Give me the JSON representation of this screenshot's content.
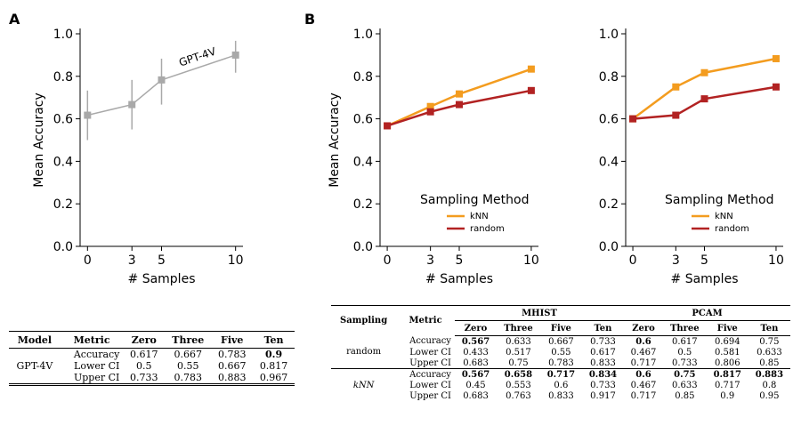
{
  "panels": {
    "a": "A",
    "b": "B"
  },
  "chart_data": [
    {
      "type": "line",
      "panel": "A",
      "xlabel": "# Samples",
      "ylabel": "Mean Accuracy",
      "xticks": [
        0,
        3,
        5,
        10
      ],
      "yticks": [
        "0.0",
        "0.2",
        "0.4",
        "0.6",
        "0.8",
        "1.0"
      ],
      "xlim": [
        -0.5,
        10.5
      ],
      "ylim": [
        0,
        1.0
      ],
      "annotation": "GPT-4V",
      "color": "#a9a9a9",
      "series": [
        {
          "name": "GPT-4V",
          "x": [
            0,
            3,
            5,
            10
          ],
          "y": [
            0.617,
            0.667,
            0.783,
            0.9
          ],
          "lower": [
            0.5,
            0.55,
            0.667,
            0.817
          ],
          "upper": [
            0.733,
            0.783,
            0.883,
            0.967
          ]
        }
      ]
    },
    {
      "type": "line",
      "panel": "B-left",
      "xlabel": "# Samples",
      "ylabel": "Mean Accuracy",
      "xticks": [
        0,
        3,
        5,
        10
      ],
      "yticks": [
        "0.0",
        "0.2",
        "0.4",
        "0.6",
        "0.8",
        "1.0"
      ],
      "xlim": [
        -0.5,
        10.5
      ],
      "ylim": [
        0,
        1.0
      ],
      "legend": {
        "title": "Sampling Method",
        "placement": "lower-right"
      },
      "series": [
        {
          "name": "kNN",
          "color": "#f39c1f",
          "x": [
            0,
            3,
            5,
            10
          ],
          "y": [
            0.567,
            0.658,
            0.717,
            0.834
          ]
        },
        {
          "name": "random",
          "color": "#b22222",
          "x": [
            0,
            3,
            5,
            10
          ],
          "y": [
            0.567,
            0.633,
            0.667,
            0.733
          ]
        }
      ]
    },
    {
      "type": "line",
      "panel": "B-right",
      "xlabel": "# Samples",
      "ylabel": "",
      "xticks": [
        0,
        3,
        5,
        10
      ],
      "yticks": [
        "0.0",
        "0.2",
        "0.4",
        "0.6",
        "0.8",
        "1.0"
      ],
      "xlim": [
        -0.5,
        10.5
      ],
      "ylim": [
        0,
        1.0
      ],
      "legend": {
        "title": "Sampling Method",
        "placement": "lower-right"
      },
      "series": [
        {
          "name": "kNN",
          "color": "#f39c1f",
          "x": [
            0,
            3,
            5,
            10
          ],
          "y": [
            0.6,
            0.75,
            0.817,
            0.883
          ]
        },
        {
          "name": "random",
          "color": "#b22222",
          "x": [
            0,
            3,
            5,
            10
          ],
          "y": [
            0.6,
            0.617,
            0.694,
            0.75
          ]
        }
      ]
    }
  ],
  "tableA": {
    "headers": [
      "Model",
      "Metric",
      "Zero",
      "Three",
      "Five",
      "Ten"
    ],
    "model": "GPT-4V",
    "rows": [
      {
        "metric": "Accuracy",
        "values": [
          "0.617",
          "0.667",
          "0.783",
          "0.9"
        ]
      },
      {
        "metric": "Lower CI",
        "values": [
          "0.5",
          "0.55",
          "0.667",
          "0.817"
        ]
      },
      {
        "metric": "Upper CI",
        "values": [
          "0.733",
          "0.783",
          "0.883",
          "0.967"
        ]
      }
    ]
  },
  "tableB": {
    "headers": {
      "sampling": "Sampling",
      "metric": "Metric",
      "group1": "MHIST",
      "group2": "PCAM"
    },
    "subheaders": [
      "Zero",
      "Three",
      "Five",
      "Ten",
      "Zero",
      "Three",
      "Five",
      "Ten"
    ],
    "groups": [
      {
        "name": "random",
        "rows": [
          {
            "metric": "Accuracy",
            "values": [
              "0.567",
              "0.633",
              "0.667",
              "0.733",
              "0.6",
              "0.617",
              "0.694",
              "0.75"
            ],
            "bold": [
              true,
              false,
              false,
              false,
              true,
              false,
              false,
              false
            ]
          },
          {
            "metric": "Lower CI",
            "values": [
              "0.433",
              "0.517",
              "0.55",
              "0.617",
              "0.467",
              "0.5",
              "0.581",
              "0.633"
            ],
            "bold": [
              false,
              false,
              false,
              false,
              false,
              false,
              false,
              false
            ]
          },
          {
            "metric": "Upper CI",
            "values": [
              "0.683",
              "0.75",
              "0.783",
              "0.833",
              "0.717",
              "0.733",
              "0.806",
              "0.85"
            ],
            "bold": [
              false,
              false,
              false,
              false,
              false,
              false,
              false,
              false
            ]
          }
        ]
      },
      {
        "name": "kNN",
        "rows": [
          {
            "metric": "Accuracy",
            "values": [
              "0.567",
              "0.658",
              "0.717",
              "0.834",
              "0.6",
              "0.75",
              "0.817",
              "0.883"
            ],
            "bold": [
              true,
              true,
              true,
              true,
              true,
              true,
              true,
              true
            ]
          },
          {
            "metric": "Lower CI",
            "values": [
              "0.45",
              "0.553",
              "0.6",
              "0.733",
              "0.467",
              "0.633",
              "0.717",
              "0.8"
            ],
            "bold": [
              false,
              false,
              false,
              false,
              false,
              false,
              false,
              false
            ]
          },
          {
            "metric": "Upper CI",
            "values": [
              "0.683",
              "0.763",
              "0.833",
              "0.917",
              "0.717",
              "0.85",
              "0.9",
              "0.95"
            ],
            "bold": [
              false,
              false,
              false,
              false,
              false,
              false,
              false,
              false
            ]
          }
        ]
      }
    ]
  }
}
